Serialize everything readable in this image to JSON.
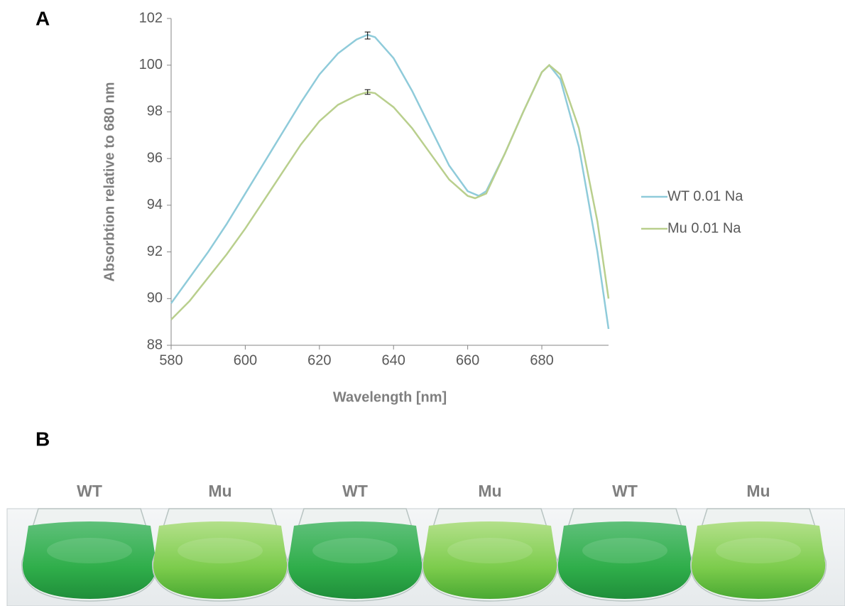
{
  "panel_labels": [
    "A",
    "B"
  ],
  "chart_data": {
    "type": "line",
    "y_label": "Absorbtion relative to 680 nm",
    "x_label": "Wavelength [nm]",
    "xlim": [
      580,
      698
    ],
    "xticks": [
      580,
      600,
      620,
      640,
      660,
      680
    ],
    "ylim": [
      88,
      102
    ],
    "yticks": [
      88,
      90,
      92,
      94,
      96,
      98,
      100,
      102
    ],
    "legend": "right",
    "series": [
      {
        "name": "WT 0.01 Na",
        "color": "#8fcbda",
        "x": [
          580,
          585,
          590,
          595,
          600,
          605,
          610,
          615,
          620,
          625,
          630,
          633,
          635,
          640,
          645,
          650,
          655,
          660,
          663,
          665,
          670,
          675,
          680,
          682,
          685,
          690,
          695,
          698
        ],
        "values": [
          89.8,
          90.9,
          92.0,
          93.2,
          94.5,
          95.8,
          97.1,
          98.4,
          99.6,
          100.5,
          101.1,
          101.3,
          101.2,
          100.3,
          98.9,
          97.3,
          95.7,
          94.6,
          94.4,
          94.6,
          96.2,
          98.0,
          99.7,
          100.0,
          99.4,
          96.5,
          92.0,
          88.7
        ],
        "error_bar": {
          "x": 633,
          "y": 101.27,
          "error": 0.15
        }
      },
      {
        "name": "Mu 0.01 Na",
        "color": "#b9cf8d",
        "x": [
          580,
          585,
          590,
          595,
          600,
          605,
          610,
          615,
          620,
          625,
          630,
          633,
          635,
          640,
          645,
          650,
          655,
          660,
          662,
          665,
          670,
          675,
          680,
          682,
          685,
          690,
          695,
          698
        ],
        "values": [
          89.1,
          89.9,
          90.9,
          91.9,
          93.0,
          94.2,
          95.4,
          96.6,
          97.6,
          98.3,
          98.7,
          98.85,
          98.8,
          98.2,
          97.3,
          96.2,
          95.1,
          94.4,
          94.3,
          94.5,
          96.2,
          98.0,
          99.7,
          100.0,
          99.6,
          97.3,
          93.3,
          90.0
        ],
        "error_bar": {
          "x": 633,
          "y": 98.85,
          "error": 0.1
        }
      }
    ]
  },
  "photo_labels": [
    "WT",
    "Mu",
    "WT",
    "Mu",
    "WT",
    "Mu"
  ]
}
